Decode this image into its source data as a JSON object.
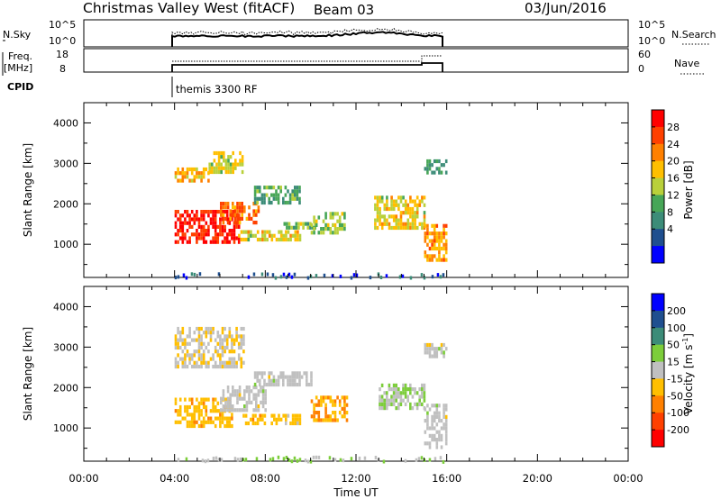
{
  "header": {
    "station": "Christmas Valley West (fitACF)",
    "beam": "Beam 03",
    "date": "03/Jun/2016"
  },
  "nsky_panel": {
    "label": "N.Sky",
    "ticks": [
      "10^5",
      "10^0"
    ],
    "right_ticks": [
      "10^5",
      "10^0"
    ],
    "right_label": "N.Search"
  },
  "freq_panel": {
    "label_line1": "Freq.",
    "label_line2": "[MHz]",
    "ticks": [
      "18",
      "8"
    ],
    "right_ticks": [
      "60",
      "0"
    ],
    "right_label": "Nave"
  },
  "cpid": {
    "label": "CPID",
    "mode": "themis 3300 RF"
  },
  "colors": {
    "power_scale": [
      "#0000ff",
      "#1f4f8f",
      "#3c8c78",
      "#47a657",
      "#b9d03a",
      "#ffbf00",
      "#ff8000",
      "#ff4000",
      "#ff0000"
    ],
    "velocity_scale": [
      "#0000ff",
      "#1f4f8f",
      "#3c8c78",
      "#7ccd3a",
      "#c0c0c0",
      "#ffbf00",
      "#ff8000",
      "#ff4000",
      "#ff0000"
    ]
  },
  "chart_data": [
    {
      "type": "heatmap",
      "name": "power",
      "ylabel": "Slant Range [km]",
      "xlim": [
        0,
        24
      ],
      "ylim": [
        180,
        4500
      ],
      "yticks": [
        "1000",
        "2000",
        "3000",
        "4000"
      ],
      "colorbar": {
        "label": "Power [dB]",
        "ticks": [
          "28",
          "24",
          "20",
          "16",
          "12",
          "8",
          "4"
        ],
        "range": [
          0,
          32
        ]
      },
      "patches": [
        {
          "t0": 4.0,
          "t1": 6.8,
          "r0": 1050,
          "r1": 1850,
          "value": 29
        },
        {
          "t0": 6.0,
          "t1": 7.7,
          "r0": 1500,
          "r1": 2050,
          "value": 24
        },
        {
          "t0": 4.0,
          "t1": 5.5,
          "r0": 2550,
          "r1": 2900,
          "value": 20
        },
        {
          "t0": 5.5,
          "t1": 7.0,
          "r0": 2800,
          "r1": 3300,
          "value": 17
        },
        {
          "t0": 7.5,
          "t1": 9.5,
          "r0": 2050,
          "r1": 2450,
          "value": 12
        },
        {
          "t0": 6.8,
          "t1": 9.5,
          "r0": 1100,
          "r1": 1350,
          "value": 18
        },
        {
          "t0": 8.8,
          "t1": 10.2,
          "r0": 1400,
          "r1": 1550,
          "value": 14
        },
        {
          "t0": 10.0,
          "t1": 11.5,
          "r0": 1300,
          "r1": 1800,
          "value": 15
        },
        {
          "t0": 12.8,
          "t1": 15.0,
          "r0": 1400,
          "r1": 2200,
          "value": 18
        },
        {
          "t0": 15.0,
          "t1": 16.0,
          "r0": 600,
          "r1": 1500,
          "value": 22
        },
        {
          "t0": 15.0,
          "t1": 16.0,
          "r0": 2750,
          "r1": 3100,
          "value": 12
        }
      ]
    },
    {
      "type": "heatmap",
      "name": "velocity",
      "ylabel": "Slant Range [km]",
      "xlabel": "Time UT",
      "xlim": [
        0,
        24
      ],
      "ylim": [
        180,
        4500
      ],
      "xticks": [
        "00:00",
        "04:00",
        "08:00",
        "12:00",
        "16:00",
        "20:00",
        "00:00"
      ],
      "yticks": [
        "1000",
        "2000",
        "3000",
        "4000"
      ],
      "colorbar": {
        "label_main": "Velocity [m s",
        "label_sup": "-1",
        "label_end": "]",
        "ticks": [
          "200",
          "100",
          "50",
          "15",
          "-15",
          "-50",
          "-100",
          "-200"
        ],
        "range": [
          -250,
          250
        ]
      },
      "patches": [
        {
          "t0": 4.0,
          "t1": 6.5,
          "r0": 1050,
          "r1": 1750,
          "value": -60
        },
        {
          "t0": 6.0,
          "t1": 8.0,
          "r0": 1450,
          "r1": 2050,
          "value": 0
        },
        {
          "t0": 7.5,
          "t1": 10.0,
          "r0": 2050,
          "r1": 2400,
          "value": 0
        },
        {
          "t0": 4.0,
          "t1": 7.0,
          "r0": 2500,
          "r1": 3500,
          "value": -20
        },
        {
          "t0": 7.0,
          "t1": 9.5,
          "r0": 1150,
          "r1": 1350,
          "value": -55
        },
        {
          "t0": 10.0,
          "t1": 11.6,
          "r0": 1150,
          "r1": 1800,
          "value": -90
        },
        {
          "t0": 13.0,
          "t1": 15.0,
          "r0": 1500,
          "r1": 2100,
          "value": 25
        },
        {
          "t0": 15.0,
          "t1": 16.0,
          "r0": 550,
          "r1": 1600,
          "value": 0
        },
        {
          "t0": 15.0,
          "t1": 16.0,
          "r0": 2750,
          "r1": 3100,
          "value": 0
        }
      ]
    }
  ]
}
